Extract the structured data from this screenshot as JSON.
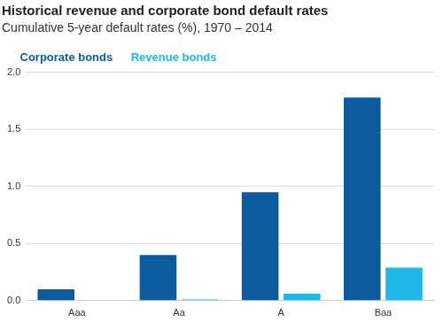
{
  "chart_data": {
    "type": "bar",
    "title": "Historical revenue and corporate bond default rates",
    "subtitle": "Cumulative 5-year default rates (%), 1970 – 2014",
    "categories": [
      "Aaa",
      "Aa",
      "A",
      "Baa"
    ],
    "series": [
      {
        "name": "Corporate bonds",
        "color": "#0b5b9e",
        "values": [
          0.1,
          0.4,
          0.95,
          1.78
        ]
      },
      {
        "name": "Revenue bonds",
        "color": "#1fb6e8",
        "values": [
          0.0,
          0.01,
          0.06,
          0.29
        ]
      }
    ],
    "ylim": [
      0,
      2
    ],
    "yticks": [
      {
        "value": 0,
        "label": "0.0"
      },
      0.5,
      {
        "value": 1,
        "label": "1.0"
      },
      1.5,
      {
        "value": 2,
        "label": "2.0"
      }
    ],
    "grid": true,
    "legend": "top-left"
  }
}
